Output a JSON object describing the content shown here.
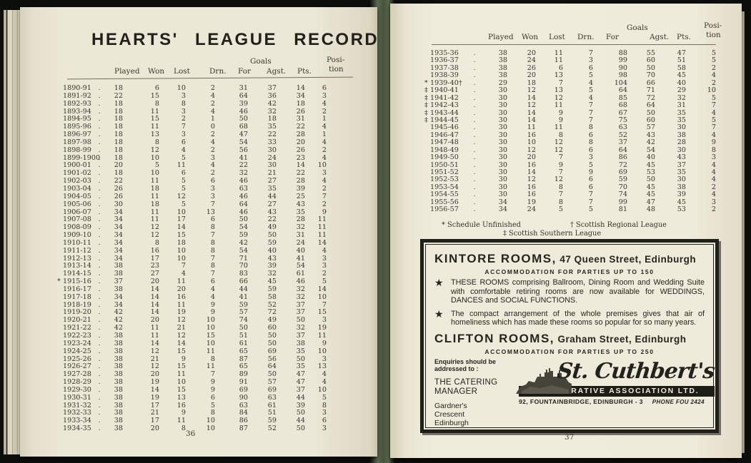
{
  "book": {
    "leader_dot": ".",
    "table_columns": {
      "played": "Played",
      "won": "Won",
      "lost": "Lost",
      "drn": "Drn.",
      "goals_group": "Goals",
      "for": "For",
      "agst": "Agst.",
      "pts": "Pts.",
      "position_line1": "Posi-",
      "position_line2": "tion"
    },
    "left_page": {
      "title": "HEARTS' LEAGUE RECORD",
      "page_number": "36",
      "rows": [
        [
          "1890-91",
          "18",
          "6",
          "10",
          "2",
          "31",
          "37",
          "14",
          "6"
        ],
        [
          "1891-92",
          "22",
          "15",
          "3",
          "4",
          "64",
          "36",
          "34",
          "3"
        ],
        [
          "1892-93",
          "18",
          "8",
          "8",
          "2",
          "39",
          "42",
          "18",
          "4"
        ],
        [
          "1893-94",
          "18",
          "11",
          "3",
          "4",
          "46",
          "32",
          "26",
          "2"
        ],
        [
          "1894-95",
          "18",
          "15",
          "2",
          "1",
          "50",
          "18",
          "31",
          "1"
        ],
        [
          "1895-96",
          "18",
          "11",
          "7",
          "0",
          "68",
          "35",
          "22",
          "4"
        ],
        [
          "1896-97",
          "18",
          "13",
          "3",
          "2",
          "47",
          "22",
          "28",
          "1"
        ],
        [
          "1897-98",
          "18",
          "8",
          "6",
          "4",
          "54",
          "33",
          "20",
          "4"
        ],
        [
          "1898-99",
          "18",
          "12",
          "4",
          "2",
          "56",
          "30",
          "26",
          "2"
        ],
        [
          "1899-1900",
          "18",
          "10",
          "5",
          "3",
          "41",
          "24",
          "23",
          "4"
        ],
        [
          "1900-01",
          "20",
          "5",
          "11",
          "4",
          "22",
          "30",
          "14",
          "10"
        ],
        [
          "1901-02",
          "18",
          "10",
          "6",
          "2",
          "32",
          "21",
          "22",
          "3"
        ],
        [
          "1902-03",
          "22",
          "11",
          "5",
          "6",
          "46",
          "27",
          "28",
          "4"
        ],
        [
          "1903-04",
          "26",
          "18",
          "5",
          "3",
          "63",
          "35",
          "39",
          "2"
        ],
        [
          "1904-05",
          "26",
          "11",
          "12",
          "3",
          "46",
          "44",
          "25",
          "7"
        ],
        [
          "1905-06",
          "30",
          "18",
          "5",
          "7",
          "64",
          "27",
          "43",
          "2"
        ],
        [
          "1906-07",
          "34",
          "11",
          "10",
          "13",
          "46",
          "43",
          "35",
          "9"
        ],
        [
          "1907-08",
          "34",
          "11",
          "17",
          "6",
          "50",
          "22",
          "28",
          "11"
        ],
        [
          "1908-09",
          "34",
          "12",
          "14",
          "8",
          "54",
          "49",
          "32",
          "11"
        ],
        [
          "1909-10",
          "34",
          "12",
          "15",
          "7",
          "59",
          "50",
          "31",
          "11"
        ],
        [
          "1910-11",
          "34",
          "8",
          "18",
          "8",
          "42",
          "59",
          "24",
          "14"
        ],
        [
          "1911-12",
          "34",
          "16",
          "10",
          "8",
          "54",
          "40",
          "40",
          "4"
        ],
        [
          "1912-13",
          "34",
          "17",
          "10",
          "7",
          "71",
          "43",
          "41",
          "3"
        ],
        [
          "1913-14",
          "38",
          "23",
          "7",
          "8",
          "70",
          "39",
          "54",
          "3"
        ],
        [
          "1914-15",
          "38",
          "27",
          "4",
          "7",
          "83",
          "32",
          "61",
          "2"
        ],
        [
          "*1915-16",
          "37",
          "20",
          "11",
          "6",
          "66",
          "45",
          "46",
          "5"
        ],
        [
          "1916-17",
          "38",
          "14",
          "20",
          "4",
          "44",
          "59",
          "32",
          "14"
        ],
        [
          "1917-18",
          "34",
          "14",
          "16",
          "4",
          "41",
          "58",
          "32",
          "10"
        ],
        [
          "1918-19",
          "34",
          "14",
          "11",
          "9",
          "59",
          "52",
          "37",
          "7"
        ],
        [
          "1919-20",
          "42",
          "14",
          "19",
          "9",
          "57",
          "72",
          "37",
          "15"
        ],
        [
          "1920-21",
          "42",
          "20",
          "12",
          "10",
          "74",
          "49",
          "50",
          "3"
        ],
        [
          "1921-22",
          "42",
          "11",
          "21",
          "10",
          "50",
          "60",
          "32",
          "19"
        ],
        [
          "1922-23",
          "38",
          "11",
          "12",
          "15",
          "51",
          "50",
          "37",
          "11"
        ],
        [
          "1923-24",
          "38",
          "14",
          "14",
          "10",
          "61",
          "50",
          "38",
          "9"
        ],
        [
          "1924-25",
          "38",
          "12",
          "15",
          "11",
          "65",
          "69",
          "35",
          "10"
        ],
        [
          "1925-26",
          "38",
          "21",
          "9",
          "8",
          "87",
          "56",
          "50",
          "3"
        ],
        [
          "1926-27",
          "38",
          "12",
          "15",
          "11",
          "65",
          "64",
          "35",
          "13"
        ],
        [
          "1927-28",
          "38",
          "20",
          "11",
          "7",
          "89",
          "50",
          "47",
          "4"
        ],
        [
          "1928-29",
          "38",
          "19",
          "10",
          "9",
          "91",
          "57",
          "47",
          "4"
        ],
        [
          "1929-30",
          "38",
          "14",
          "15",
          "9",
          "69",
          "69",
          "37",
          "10"
        ],
        [
          "1930-31",
          "38",
          "19",
          "13",
          "6",
          "90",
          "63",
          "44",
          "5"
        ],
        [
          "1931-32",
          "38",
          "17",
          "16",
          "5",
          "63",
          "61",
          "39",
          "8"
        ],
        [
          "1932-33",
          "38",
          "21",
          "9",
          "8",
          "84",
          "51",
          "50",
          "3"
        ],
        [
          "1933-34",
          "38",
          "17",
          "11",
          "10",
          "86",
          "59",
          "44",
          "6"
        ],
        [
          "1934-35",
          "38",
          "20",
          "8",
          "10",
          "87",
          "52",
          "50",
          "3"
        ]
      ]
    },
    "right_page": {
      "page_number": "37",
      "rows": [
        [
          "1935-36",
          "38",
          "20",
          "11",
          "7",
          "88",
          "55",
          "47",
          "5"
        ],
        [
          "1936-37",
          "38",
          "24",
          "11",
          "3",
          "99",
          "60",
          "51",
          "5"
        ],
        [
          "1937-38",
          "38",
          "26",
          "6",
          "6",
          "90",
          "50",
          "58",
          "2"
        ],
        [
          "1938-39",
          "38",
          "20",
          "13",
          "5",
          "98",
          "70",
          "45",
          "4"
        ],
        [
          "*1939-40†",
          "29",
          "18",
          "7",
          "4",
          "104",
          "66",
          "40",
          "2"
        ],
        [
          "‡1940-41",
          "30",
          "12",
          "13",
          "5",
          "64",
          "71",
          "29",
          "10"
        ],
        [
          "‡1941-42",
          "30",
          "14",
          "12",
          "4",
          "85",
          "72",
          "32",
          "5"
        ],
        [
          "‡1942-43",
          "30",
          "12",
          "11",
          "7",
          "68",
          "64",
          "31",
          "7"
        ],
        [
          "‡1943-44",
          "30",
          "14",
          "9",
          "7",
          "67",
          "50",
          "35",
          "4"
        ],
        [
          "‡1944-45",
          "30",
          "14",
          "9",
          "7",
          "75",
          "60",
          "35",
          "5"
        ],
        [
          "1945-46",
          "30",
          "11",
          "11",
          "8",
          "63",
          "57",
          "30",
          "7"
        ],
        [
          "1946-47",
          "30",
          "16",
          "8",
          "6",
          "52",
          "43",
          "38",
          "4"
        ],
        [
          "1947-48",
          "30",
          "10",
          "12",
          "8",
          "37",
          "42",
          "28",
          "9"
        ],
        [
          "1948-49",
          "30",
          "12",
          "12",
          "6",
          "64",
          "54",
          "30",
          "8"
        ],
        [
          "1949-50",
          "30",
          "20",
          "7",
          "3",
          "86",
          "40",
          "43",
          "3"
        ],
        [
          "1950-51",
          "30",
          "16",
          "9",
          "5",
          "72",
          "45",
          "37",
          "4"
        ],
        [
          "1951-52",
          "30",
          "14",
          "7",
          "9",
          "69",
          "53",
          "35",
          "4"
        ],
        [
          "1952-53",
          "30",
          "12",
          "12",
          "6",
          "59",
          "50",
          "30",
          "4"
        ],
        [
          "1953-54",
          "30",
          "16",
          "8",
          "6",
          "70",
          "45",
          "38",
          "2"
        ],
        [
          "1954-55",
          "30",
          "16",
          "7",
          "7",
          "74",
          "45",
          "39",
          "4"
        ],
        [
          "1955-56",
          "34",
          "19",
          "8",
          "7",
          "99",
          "47",
          "45",
          "3"
        ],
        [
          "1956-57",
          "34",
          "24",
          "5",
          "5",
          "81",
          "48",
          "53",
          "2"
        ]
      ],
      "footnotes": {
        "schedule": "* Schedule Unfinished",
        "regional": "† Scottish Regional League",
        "southern": "‡ Scottish Southern League"
      },
      "ad": {
        "star_icon": "★",
        "kintore_heading": "KINTORE ROOMS,",
        "kintore_sub": "47 Queen Street, Edinburgh",
        "kintore_accommodation": "ACCOMMODATION FOR PARTIES UP TO 150",
        "bullet1": "THESE ROOMS comprising Ballroom, Dining Room and Wedding Suite with comfortable retiring rooms are now available for WEDDINGS, DANCES and SOCIAL FUNCTIONS.",
        "bullet2": "The compact arrangement of the whole premises gives that air of homeliness which has made these rooms so popular for so many years.",
        "clifton_heading": "CLIFTON ROOMS,",
        "clifton_sub": "Graham Street, Edinburgh",
        "clifton_accommodation": "ACCOMMODATION FOR PARTIES UP TO 250",
        "enquiries": "Enquiries should be\naddressed to :",
        "catering_manager": "THE CATERING\nMANAGER",
        "gardners_address": "Gardner's\nCrescent\nEdinburgh",
        "logo_script": "St. Cuthbert's",
        "logo_bar": "CO-OPERATIVE ASSOCIATION LTD.",
        "logo_address": "92, FOUNTAINBRIDGE, EDINBURGH - 3",
        "logo_phone": "PHONE FOU 2424"
      }
    }
  }
}
